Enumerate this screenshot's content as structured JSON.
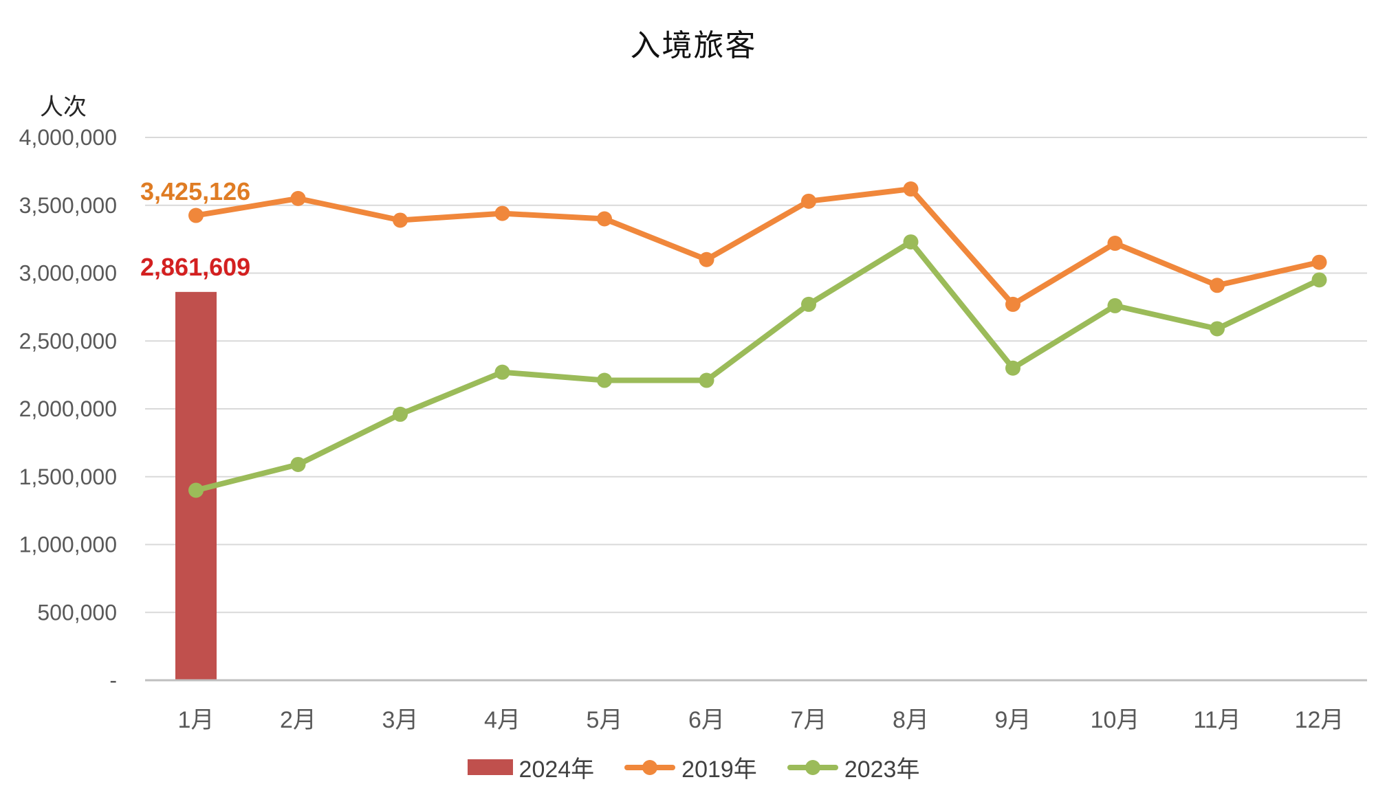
{
  "chart_data": {
    "type": "combo-bar-line",
    "title": "入境旅客",
    "y_axis_unit": "人次",
    "categories": [
      "1月",
      "2月",
      "3月",
      "4月",
      "5月",
      "6月",
      "7月",
      "8月",
      "9月",
      "10月",
      "11月",
      "12月"
    ],
    "series": [
      {
        "name": "2024年",
        "type": "bar",
        "color": "#C0504D",
        "values": [
          2861609,
          null,
          null,
          null,
          null,
          null,
          null,
          null,
          null,
          null,
          null,
          null
        ]
      },
      {
        "name": "2019年",
        "type": "line",
        "color": "#F0873B",
        "values": [
          3425126,
          3550000,
          3390000,
          3440000,
          3400000,
          3100000,
          3530000,
          3620000,
          2770000,
          3220000,
          2910000,
          3080000
        ]
      },
      {
        "name": "2023年",
        "type": "line",
        "color": "#9BBB59",
        "values": [
          1400000,
          1590000,
          1960000,
          2270000,
          2210000,
          2210000,
          2770000,
          3230000,
          2300000,
          2760000,
          2590000,
          2950000
        ]
      }
    ],
    "y_ticks": [
      "4,000,000",
      "3,500,000",
      "3,000,000",
      "2,500,000",
      "2,000,000",
      "1,500,000",
      "1,000,000",
      "500,000",
      "-"
    ],
    "ylim": [
      0,
      4000000
    ],
    "y_tick_step": 500000,
    "grid": "horizontal",
    "legend_position": "bottom",
    "annotations": [
      {
        "text": "3,425,126",
        "series": "2019年",
        "category": "1月",
        "color": "#DF7C24"
      },
      {
        "text": "2,861,609",
        "series": "2024年",
        "category": "1月",
        "color": "#D32020"
      }
    ],
    "style_colors": {
      "gridline": "#D9D9D9",
      "axis_line": "#BFBFBF",
      "tick_text": "#595959",
      "title_text": "#111111",
      "legend_text": "#404040"
    }
  }
}
